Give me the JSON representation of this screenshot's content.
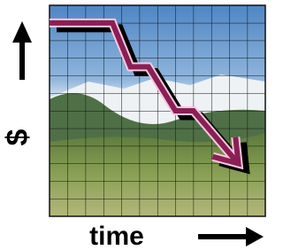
{
  "chart_data": {
    "type": "line",
    "x_label": "time",
    "y_label": "$",
    "x": [
      0,
      3.5,
      4.5,
      5.5,
      7,
      8,
      10.5
    ],
    "y": [
      11,
      11,
      8.5,
      8.5,
      6,
      6,
      3
    ],
    "color": "#8b1f55",
    "xlim": [
      0,
      12
    ],
    "ylim": [
      0,
      12
    ],
    "grid": true
  }
}
